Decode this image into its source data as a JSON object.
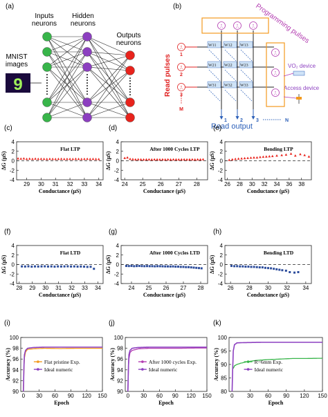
{
  "panel_a": {
    "label": "(a)",
    "col_labels": [
      "Inputs\nneurons",
      "Hidden\nneurons",
      "Outputs\nneurons"
    ],
    "image_label": "MNIST\nimages",
    "digit": "9"
  },
  "panel_b": {
    "label": "(b)",
    "programming_label": "Programming pulses",
    "read_pulses_label": "Read pulses",
    "read_output_label": "Read output",
    "vo2_label": "VO₂ device",
    "access_label": "Access device",
    "row_indices": [
      "1",
      "2",
      "3",
      "M"
    ],
    "col_indices": [
      "1",
      "2",
      "3",
      "N"
    ],
    "weights": [
      [
        "W11",
        "W12",
        "W13"
      ],
      [
        "W21",
        "W22",
        "W23"
      ],
      [
        "W31",
        "W32",
        "W33"
      ]
    ]
  },
  "colors": {
    "ltp": "#e8231c",
    "ltd": "#2d4d9c",
    "green": "#38b54a",
    "purple": "#8c3fc0",
    "orange": "#f39a1e",
    "magenta_text": "#b23bb0",
    "red_text": "#e02020",
    "blue_text": "#2b5fb8"
  },
  "chart_data": [
    {
      "id": "c",
      "label": "(c)",
      "type": "scatter",
      "title": "Flat LTP",
      "xlabel": "Conductance (μS)",
      "ylabel": "ΔG (μS)",
      "xlim": [
        28.3,
        34.3
      ],
      "xticks": [
        29,
        30,
        31,
        32,
        33,
        34
      ],
      "ylim": [
        -4,
        4
      ],
      "yticks": [
        -4,
        -2,
        0,
        2,
        4
      ],
      "color_key": "ltp",
      "marker": "triangle-up",
      "x": [
        28.4,
        28.6,
        28.8,
        29.0,
        29.2,
        29.4,
        29.6,
        29.8,
        30.0,
        30.2,
        30.4,
        30.6,
        30.8,
        31.0,
        31.2,
        31.4,
        31.6,
        31.8,
        32.0,
        32.2,
        32.4,
        32.6,
        32.8,
        33.0,
        33.2,
        33.4,
        33.6,
        33.8,
        34.0
      ],
      "y": [
        0.5,
        0.45,
        0.5,
        0.4,
        0.45,
        0.4,
        0.45,
        0.4,
        0.42,
        0.4,
        0.38,
        0.42,
        0.4,
        0.38,
        0.4,
        0.42,
        0.38,
        0.4,
        0.4,
        0.38,
        0.42,
        0.4,
        0.38,
        0.4,
        0.42,
        0.38,
        0.4,
        0.38,
        0.36
      ]
    },
    {
      "id": "d",
      "label": "(d)",
      "type": "scatter",
      "title": "After 1000 Cycles LTP",
      "xlabel": "Conductance (μS)",
      "ylabel": "ΔG (μS)",
      "xlim": [
        23.8,
        28.6
      ],
      "xticks": [
        24,
        25,
        26,
        27,
        28
      ],
      "ylim": [
        -4,
        4
      ],
      "yticks": [
        -4,
        -2,
        0,
        2,
        4
      ],
      "color_key": "ltp",
      "marker": "triangle-up",
      "x": [
        24.0,
        24.15,
        24.3,
        24.45,
        24.6,
        24.75,
        24.9,
        25.05,
        25.2,
        25.35,
        25.5,
        25.65,
        25.8,
        25.95,
        26.1,
        26.25,
        26.4,
        26.55,
        26.7,
        26.85,
        27.0,
        27.15,
        27.3,
        27.45,
        27.6,
        27.75,
        27.9,
        28.05,
        28.2,
        28.35
      ],
      "y": [
        0.6,
        0.7,
        0.4,
        0.35,
        0.3,
        0.32,
        0.3,
        0.28,
        0.3,
        0.3,
        0.28,
        0.3,
        0.3,
        0.28,
        0.3,
        0.28,
        0.3,
        0.28,
        0.3,
        0.3,
        0.28,
        0.3,
        0.3,
        0.28,
        0.3,
        0.3,
        0.28,
        0.3,
        0.3,
        0.32
      ]
    },
    {
      "id": "e",
      "label": "(e)",
      "type": "scatter",
      "title": "Bending LTP",
      "xlabel": "Conductance (μS)",
      "ylabel": "ΔG (μS)",
      "xlim": [
        25.6,
        39.6
      ],
      "xticks": [
        26,
        28,
        30,
        32,
        34,
        36,
        38
      ],
      "ylim": [
        -4,
        4
      ],
      "yticks": [
        -4,
        -2,
        0,
        2,
        4
      ],
      "color_key": "ltp",
      "marker": "triangle-up",
      "x": [
        26.3,
        26.8,
        27.3,
        27.8,
        28.3,
        28.8,
        29.3,
        29.8,
        30.3,
        30.8,
        31.3,
        31.8,
        32.3,
        32.8,
        33.3,
        34.0,
        34.8,
        35.5,
        36.3,
        37.0,
        37.8,
        38.5,
        39.2
      ],
      "y": [
        0.2,
        0.3,
        0.4,
        0.45,
        0.5,
        0.55,
        0.6,
        0.65,
        0.7,
        0.7,
        0.8,
        0.85,
        0.9,
        0.95,
        1.0,
        1.1,
        1.2,
        1.3,
        1.5,
        1.1,
        1.4,
        1.2,
        0.9
      ]
    },
    {
      "id": "f",
      "label": "(f)",
      "type": "scatter",
      "title": "Flat LTD",
      "xlabel": "Conductance (μS)",
      "ylabel": "ΔG (μS)",
      "xlim": [
        27.8,
        34.4
      ],
      "xticks": [
        28,
        29,
        30,
        31,
        32,
        33,
        34
      ],
      "ylim": [
        -4,
        4
      ],
      "yticks": [
        -4,
        -2,
        0,
        2,
        4
      ],
      "color_key": "ltd",
      "marker": "square",
      "x": [
        28.2,
        28.45,
        28.7,
        28.95,
        29.2,
        29.45,
        29.7,
        29.95,
        30.2,
        30.45,
        30.7,
        30.95,
        31.2,
        31.45,
        31.7,
        31.95,
        32.2,
        32.45,
        32.7,
        32.95,
        33.2,
        33.45,
        33.7
      ],
      "y": [
        -0.4,
        -0.42,
        -0.38,
        -0.45,
        -0.4,
        -0.42,
        -0.4,
        -0.38,
        -0.42,
        -0.4,
        -0.45,
        -0.4,
        -0.42,
        -0.4,
        -0.38,
        -0.42,
        -0.4,
        -0.44,
        -0.42,
        -0.45,
        -0.5,
        -0.48,
        -0.9
      ]
    },
    {
      "id": "g",
      "label": "(g)",
      "type": "scatter",
      "title": "After 1000 Cycles LTD",
      "xlabel": "Conductance (μS)",
      "ylabel": "ΔG (μS)",
      "xlim": [
        23.4,
        28.4
      ],
      "xticks": [
        24,
        25,
        26,
        27,
        28
      ],
      "ylim": [
        -4,
        4
      ],
      "yticks": [
        -4,
        -2,
        0,
        2,
        4
      ],
      "color_key": "ltd",
      "marker": "square",
      "x": [
        23.7,
        23.85,
        24.0,
        24.15,
        24.3,
        24.45,
        24.6,
        24.75,
        24.9,
        25.05,
        25.2,
        25.35,
        25.5,
        25.65,
        25.8,
        25.95,
        26.1,
        26.25,
        26.4,
        26.55,
        26.7,
        26.85,
        27.0,
        27.15,
        27.3,
        27.45,
        27.6,
        27.75,
        27.9,
        28.05
      ],
      "y": [
        -0.3,
        -0.32,
        -0.3,
        -0.35,
        -0.32,
        -0.3,
        -0.33,
        -0.35,
        -0.33,
        -0.35,
        -0.35,
        -0.38,
        -0.35,
        -0.36,
        -0.38,
        -0.4,
        -0.4,
        -0.42,
        -0.4,
        -0.45,
        -0.45,
        -0.5,
        -0.5,
        -0.55,
        -0.55,
        -0.6,
        -0.65,
        -0.7,
        -0.75,
        -0.8
      ]
    },
    {
      "id": "h",
      "label": "(h)",
      "type": "scatter",
      "title": "Bending LTD",
      "xlabel": "Conductance (μS)",
      "ylabel": "ΔG (μS)",
      "xlim": [
        25.4,
        34.6
      ],
      "xticks": [
        26,
        28,
        30,
        32,
        34
      ],
      "ylim": [
        -4,
        4
      ],
      "yticks": [
        -4,
        -2,
        0,
        2,
        4
      ],
      "color_key": "ltd",
      "marker": "square",
      "x": [
        26.1,
        26.4,
        26.7,
        27.0,
        27.3,
        27.6,
        27.9,
        28.2,
        28.5,
        28.8,
        29.1,
        29.4,
        29.7,
        30.0,
        30.3,
        30.6,
        30.9,
        31.2,
        31.5,
        31.9,
        32.3,
        32.8,
        33.2
      ],
      "y": [
        -0.3,
        -0.35,
        -0.35,
        -0.4,
        -0.4,
        -0.45,
        -0.45,
        -0.5,
        -0.5,
        -0.55,
        -0.6,
        -0.6,
        -0.7,
        -0.75,
        -0.8,
        -0.9,
        -1.0,
        -1.1,
        -1.2,
        -1.3,
        -1.6,
        -1.7,
        -1.6
      ]
    },
    {
      "id": "i",
      "label": "(i)",
      "type": "line",
      "title": "",
      "xlabel": "Epoch",
      "ylabel": "Accuracy (%)",
      "xlim": [
        -5,
        150
      ],
      "xticks": [
        0,
        30,
        60,
        90,
        120,
        150
      ],
      "ylim": [
        90,
        100
      ],
      "yticks": [
        90,
        92,
        94,
        96,
        98,
        100
      ],
      "series": [
        {
          "name": "Flat pristine Exp.",
          "color_key": "orange",
          "points": [
            [
              0,
              90
            ],
            [
              1,
              94
            ],
            [
              2,
              96.2
            ],
            [
              4,
              97.3
            ],
            [
              8,
              97.8
            ],
            [
              20,
              97.9
            ],
            [
              40,
              98.0
            ],
            [
              70,
              97.95
            ],
            [
              100,
              98.0
            ],
            [
              130,
              98.0
            ],
            [
              150,
              98.0
            ]
          ]
        },
        {
          "name": "Ideal numeric",
          "color_key": "purple",
          "points": [
            [
              0,
              90
            ],
            [
              1,
              94.5
            ],
            [
              2,
              96.8
            ],
            [
              4,
              97.6
            ],
            [
              8,
              98.0
            ],
            [
              20,
              98.15
            ],
            [
              40,
              98.2
            ],
            [
              70,
              98.2
            ],
            [
              100,
              98.2
            ],
            [
              130,
              98.2
            ],
            [
              150,
              98.2
            ]
          ]
        }
      ]
    },
    {
      "id": "j",
      "label": "(j)",
      "type": "line",
      "title": "",
      "xlabel": "Epoch",
      "ylabel": "Accuracy (%)",
      "xlim": [
        -5,
        150
      ],
      "xticks": [
        0,
        30,
        60,
        90,
        120,
        150
      ],
      "ylim": [
        90,
        100
      ],
      "yticks": [
        90,
        92,
        94,
        96,
        98,
        100
      ],
      "series": [
        {
          "name": "After 1000 cycles Exp.",
          "color_key": "magenta_text",
          "points": [
            [
              0,
              90
            ],
            [
              1,
              94
            ],
            [
              2,
              96.0
            ],
            [
              4,
              97.2
            ],
            [
              8,
              97.6
            ],
            [
              20,
              97.9
            ],
            [
              40,
              98.0
            ],
            [
              70,
              98.0
            ],
            [
              100,
              98.0
            ],
            [
              130,
              98.05
            ],
            [
              150,
              98.05
            ]
          ]
        },
        {
          "name": "Ideal numeric",
          "color_key": "purple",
          "points": [
            [
              0,
              90
            ],
            [
              1,
              94.5
            ],
            [
              2,
              96.8
            ],
            [
              4,
              97.6
            ],
            [
              8,
              98.0
            ],
            [
              20,
              98.15
            ],
            [
              40,
              98.2
            ],
            [
              70,
              98.2
            ],
            [
              100,
              98.2
            ],
            [
              130,
              98.2
            ],
            [
              150,
              98.2
            ]
          ]
        }
      ]
    },
    {
      "id": "k",
      "label": "(k)",
      "type": "line",
      "title": "",
      "xlabel": "Epoch",
      "ylabel": "Accuracy (%)",
      "xlim": [
        -5,
        150
      ],
      "xticks": [
        0,
        30,
        60,
        90,
        120,
        150
      ],
      "ylim": [
        80,
        100
      ],
      "yticks": [
        80,
        85,
        90,
        95,
        100
      ],
      "series": [
        {
          "name": "R=6mm Exp.",
          "color_key": "green",
          "points": [
            [
              2,
              88.5
            ],
            [
              4,
              89.5
            ],
            [
              8,
              90.0
            ],
            [
              15,
              90.5
            ],
            [
              25,
              91.0
            ],
            [
              40,
              91.5
            ],
            [
              60,
              91.8
            ],
            [
              80,
              92.0
            ],
            [
              100,
              92.2
            ],
            [
              120,
              92.2
            ],
            [
              150,
              92.3
            ]
          ]
        },
        {
          "name": "Ideal numeric",
          "color_key": "purple",
          "points": [
            [
              0,
              80
            ],
            [
              1,
              88
            ],
            [
              2,
              95
            ],
            [
              4,
              97.3
            ],
            [
              8,
              98.0
            ],
            [
              20,
              98.1
            ],
            [
              50,
              98.2
            ],
            [
              100,
              98.2
            ],
            [
              150,
              98.2
            ]
          ]
        }
      ]
    }
  ]
}
